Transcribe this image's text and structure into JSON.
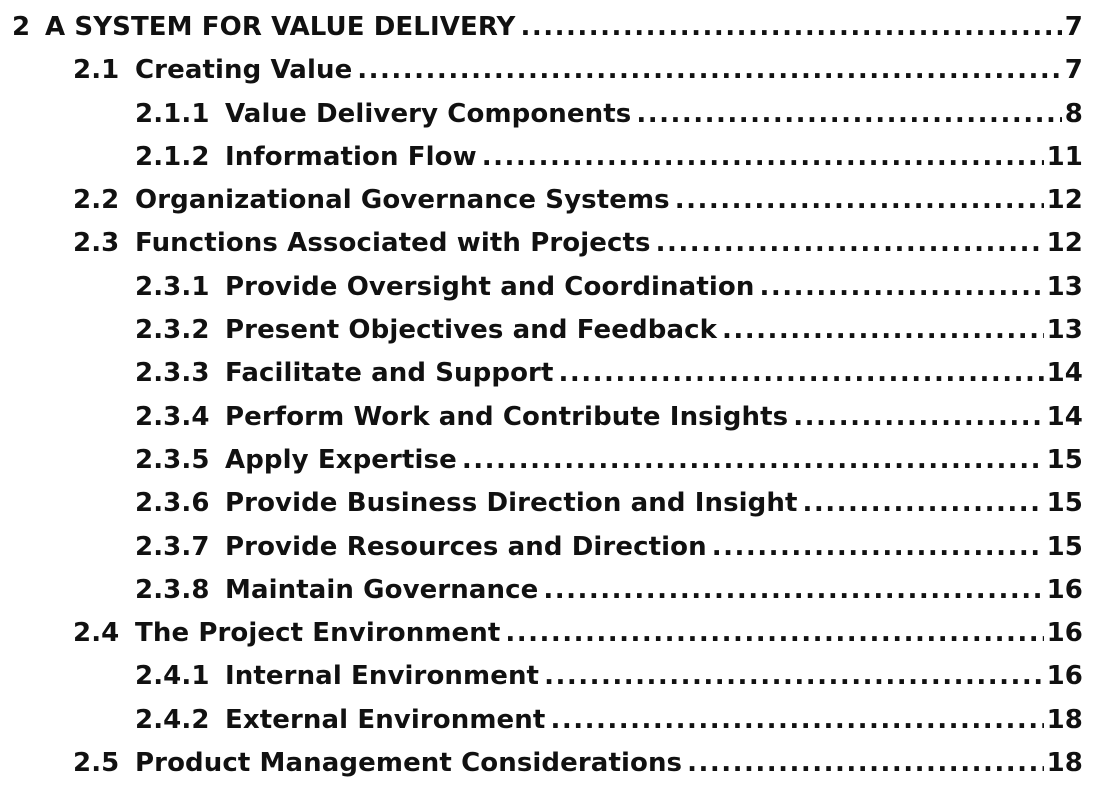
{
  "toc": {
    "entries": [
      {
        "num": "2",
        "title": "A SYSTEM FOR VALUE DELIVERY",
        "page": "7",
        "level": 1
      },
      {
        "num": "2.1",
        "title": "Creating Value",
        "page": "7",
        "level": 2
      },
      {
        "num": "2.1.1",
        "title": "Value Delivery Components",
        "page": "8",
        "level": 3
      },
      {
        "num": "2.1.2",
        "title": "Information Flow",
        "page": "11",
        "level": 3
      },
      {
        "num": "2.2",
        "title": "Organizational Governance Systems",
        "page": "12",
        "level": 2
      },
      {
        "num": "2.3",
        "title": "Functions Associated with Projects",
        "page": "12",
        "level": 2
      },
      {
        "num": "2.3.1",
        "title": "Provide Oversight and Coordination",
        "page": "13",
        "level": 3
      },
      {
        "num": "2.3.2",
        "title": "Present Objectives and Feedback",
        "page": "13",
        "level": 3
      },
      {
        "num": "2.3.3",
        "title": "Facilitate and Support",
        "page": "14",
        "level": 3
      },
      {
        "num": "2.3.4",
        "title": "Perform Work and Contribute Insights",
        "page": "14",
        "level": 3
      },
      {
        "num": "2.3.5",
        "title": "Apply Expertise",
        "page": "15",
        "level": 3
      },
      {
        "num": "2.3.6",
        "title": "Provide Business Direction and Insight",
        "page": "15",
        "level": 3
      },
      {
        "num": "2.3.7",
        "title": "Provide Resources and Direction",
        "page": "15",
        "level": 3
      },
      {
        "num": "2.3.8",
        "title": "Maintain Governance",
        "page": "16",
        "level": 3
      },
      {
        "num": "2.4",
        "title": "The Project Environment",
        "page": "16",
        "level": 2
      },
      {
        "num": "2.4.1",
        "title": "Internal Environment",
        "page": "16",
        "level": 3
      },
      {
        "num": "2.4.2",
        "title": "External Environment",
        "page": "18",
        "level": 3
      },
      {
        "num": "2.5",
        "title": "Product Management Considerations",
        "page": "18",
        "level": 2
      }
    ]
  }
}
